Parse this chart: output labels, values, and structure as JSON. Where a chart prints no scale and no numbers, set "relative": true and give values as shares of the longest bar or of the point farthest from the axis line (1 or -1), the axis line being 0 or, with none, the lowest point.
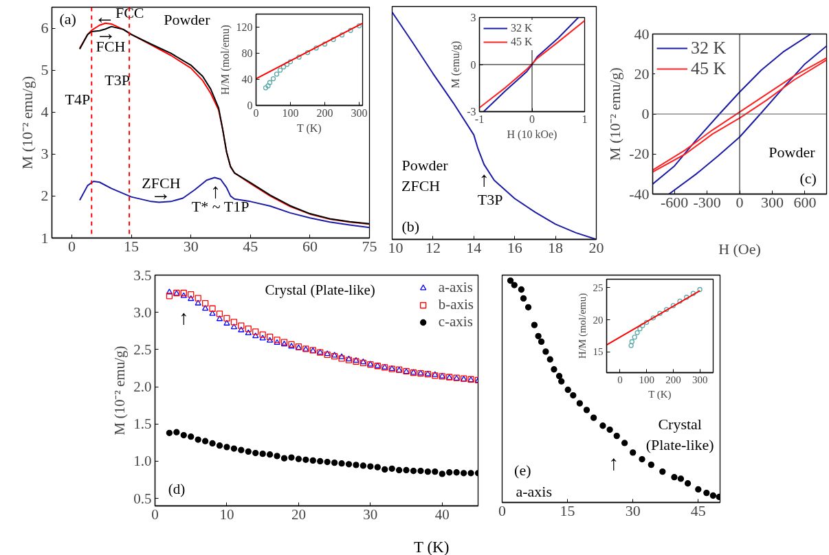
{
  "chart_data": [
    {
      "type": "line",
      "ylabel": "M (10⁻² emu/g)",
      "xlim": [
        -5,
        75
      ],
      "ylim": [
        1,
        6.5
      ],
      "xticks": [
        0,
        15,
        30,
        45,
        60,
        75
      ],
      "yticks": [
        1,
        2,
        3,
        4,
        5,
        6
      ],
      "x": [
        2,
        4,
        5,
        7,
        8.5,
        10,
        13,
        15,
        20,
        25,
        30,
        33,
        35,
        37,
        38,
        39,
        40,
        41,
        45,
        50,
        55,
        60,
        65,
        70,
        75
      ],
      "series": [
        {
          "color": "#ff0000",
          "values": [
            5.52,
            5.85,
            5.95,
            6.07,
            6.12,
            6.1,
            5.97,
            5.85,
            5.6,
            5.35,
            5.05,
            4.75,
            4.45,
            4.05,
            3.6,
            3.05,
            2.7,
            2.55,
            2.3,
            2.0,
            1.75,
            1.57,
            1.45,
            1.38,
            1.33
          ]
        },
        {
          "color": "#000000",
          "values": [
            5.5,
            5.85,
            5.92,
            5.94,
            5.98,
            6.04,
            5.97,
            5.85,
            5.62,
            5.4,
            5.12,
            4.85,
            4.55,
            4.1,
            3.6,
            3.05,
            2.7,
            2.55,
            2.32,
            2.02,
            1.77,
            1.58,
            1.46,
            1.39,
            1.34
          ]
        },
        {
          "color": "#1a1aa6",
          "x": [
            2,
            4,
            5.5,
            7,
            10,
            15,
            20,
            22,
            25,
            28,
            31,
            34,
            36,
            37.5,
            39,
            40,
            41,
            45,
            50,
            55,
            60,
            65,
            70,
            75
          ],
          "values": [
            1.9,
            2.25,
            2.35,
            2.33,
            2.18,
            1.98,
            1.87,
            1.85,
            1.87,
            1.95,
            2.15,
            2.38,
            2.44,
            2.4,
            2.2,
            2.0,
            1.93,
            1.87,
            1.76,
            1.6,
            1.48,
            1.38,
            1.31,
            1.25
          ]
        }
      ],
      "ref_lines": [
        {
          "axis": "x",
          "value": 5,
          "color": "#ff0000",
          "line_style": "dashed"
        },
        {
          "axis": "x",
          "value": 14.5,
          "color": "#ff0000",
          "line_style": "dashed"
        }
      ],
      "annotations": [
        "(a)",
        "Powder",
        "FCC",
        "←",
        "FCH",
        "→",
        "T3P",
        "T4P",
        "ZFCH",
        "→",
        "↑",
        "T* ~ T1P"
      ]
    },
    {
      "type": "scatter",
      "xlabel": "T (K)",
      "ylabel": "H/M (mol/emu)",
      "xlim": [
        0,
        310
      ],
      "ylim": [
        0,
        140
      ],
      "xticks": [
        0,
        100,
        200,
        300
      ],
      "yticks": [
        0,
        40,
        80,
        120
      ],
      "series": [
        {
          "color": "#5aa9a9",
          "marker": "circle",
          "x": [
            28,
            35,
            40,
            50,
            60,
            70,
            80,
            90,
            100,
            125,
            150,
            175,
            200,
            225,
            250,
            275,
            300
          ],
          "values": [
            27,
            30,
            35,
            41,
            48,
            54,
            59,
            63,
            67,
            74,
            81,
            88,
            94,
            101,
            108,
            115,
            122
          ]
        },
        {
          "type": "line",
          "color": "#ff0000",
          "x": [
            0,
            310
          ],
          "values": [
            41,
            126
          ]
        }
      ]
    },
    {
      "type": "line",
      "relative": true,
      "tick_labels": "x",
      "xlim": [
        10,
        20
      ],
      "xticks": [
        10,
        12,
        14,
        16,
        18,
        20
      ],
      "x": [
        10,
        11,
        12,
        13,
        14,
        14.2,
        14.5,
        15,
        16,
        17,
        18,
        19,
        20
      ],
      "series": [
        {
          "color": "#1a1aa6",
          "values": [
            1.0,
            0.867,
            0.73,
            0.6,
            0.46,
            0.4,
            0.33,
            0.26,
            0.18,
            0.12,
            0.067,
            0.029,
            0
          ]
        }
      ],
      "annotations": [
        "(b)",
        "Powder",
        "ZFCH",
        "↑",
        "T3P"
      ]
    },
    {
      "type": "line",
      "xlabel": "H (10 kOe)",
      "ylabel": "M (emu/g)",
      "xlim": [
        -1,
        1
      ],
      "ylim": [
        -3,
        3
      ],
      "xticks": [
        -1,
        0,
        1
      ],
      "yticks": [
        -3,
        0,
        3
      ],
      "legend": "top left",
      "series": [
        {
          "name": "32 K",
          "color": "#1a1aa6",
          "x": [
            -0.92,
            -0.5,
            -0.1,
            0,
            0.1,
            0.5,
            0.88
          ],
          "values": [
            -3,
            -1.65,
            -0.45,
            0,
            0.5,
            1.7,
            3
          ]
        },
        {
          "name": "45 K",
          "color": "#ff2020",
          "x": [
            -1,
            -0.5,
            -0.1,
            0,
            0.1,
            0.5,
            1
          ],
          "values": [
            -2.75,
            -1.45,
            -0.3,
            0.05,
            0.4,
            1.45,
            2.8
          ]
        }
      ],
      "ref_lines": [
        {
          "axis": "x",
          "value": 0,
          "color": "#000000"
        },
        {
          "axis": "y",
          "value": 0,
          "color": "#000000"
        }
      ]
    },
    {
      "type": "line",
      "xlabel": "H (Oe)",
      "ylabel": "M (10⁻² emu/g)",
      "xlim": [
        -800,
        800
      ],
      "ylim": [
        -40,
        40
      ],
      "xticks": [
        -600,
        -300,
        0,
        300,
        600
      ],
      "yticks": [
        -40,
        -20,
        0,
        20,
        40
      ],
      "legend": "top left",
      "series": [
        {
          "name": "32 K",
          "color": "#1a1aa6",
          "x": [
            -800,
            -600,
            -400,
            -186,
            0,
            200,
            400,
            655
          ],
          "values": [
            -35,
            -26,
            -13,
            0,
            11,
            22,
            31,
            40
          ]
        },
        {
          "color": "#1a1aa6",
          "x": [
            -650,
            -400,
            -200,
            0,
            190,
            400,
            600,
            800
          ],
          "values": [
            -40,
            -30,
            -21,
            -11.5,
            0,
            13,
            25,
            34
          ]
        },
        {
          "name": "45 K",
          "color": "#ff2020",
          "x": [
            -800,
            -500,
            -250,
            0,
            250,
            500,
            800
          ],
          "values": [
            -28,
            -18,
            -8,
            1,
            10,
            19,
            28
          ]
        },
        {
          "color": "#ff2020",
          "x": [
            -800,
            -500,
            -250,
            0,
            250,
            500,
            800
          ],
          "values": [
            -29,
            -20,
            -10,
            -2,
            7,
            17,
            27
          ]
        }
      ],
      "ref_lines": [
        {
          "axis": "x",
          "value": 0,
          "color": "#000000"
        },
        {
          "axis": "y",
          "value": 0,
          "color": "#555555"
        }
      ],
      "annotations": [
        "Powder",
        "(c)"
      ]
    },
    {
      "type": "scatter",
      "xlabel": "T (K)",
      "ylabel": "M (10⁻² emu/g)",
      "xlim": [
        0,
        45
      ],
      "ylim": [
        0.4,
        3.5
      ],
      "xticks": [
        0,
        10,
        20,
        30,
        40
      ],
      "yticks": [
        0.5,
        {
          "value": 1,
          "label": "1.0"
        },
        1.5,
        {
          "value": 2,
          "label": "2.0"
        },
        2.5,
        {
          "value": 3,
          "label": "3.0"
        },
        3.5
      ],
      "legend": "top right",
      "x": [
        2,
        3,
        4,
        5,
        6,
        7,
        8,
        9,
        10,
        11,
        12,
        13,
        14,
        15,
        16,
        17,
        18,
        19,
        20,
        21,
        22,
        23,
        24,
        25,
        26,
        27,
        28,
        29,
        30,
        31,
        32,
        33,
        34,
        35,
        36,
        37,
        38,
        39,
        40,
        41,
        42,
        43,
        44,
        45
      ],
      "series": [
        {
          "name": "a-axis",
          "color": "#0000ff",
          "marker": "triangle",
          "values": [
            3.27,
            3.25,
            3.22,
            3.18,
            3.12,
            3.05,
            2.98,
            2.91,
            2.85,
            2.8,
            2.76,
            2.72,
            2.68,
            2.65,
            2.62,
            2.59,
            2.57,
            2.54,
            2.52,
            2.5,
            2.48,
            2.46,
            2.44,
            2.42,
            2.4,
            2.37,
            2.35,
            2.33,
            2.3,
            2.28,
            2.26,
            2.24,
            2.22,
            2.2,
            2.19,
            2.18,
            2.17,
            2.16,
            2.14,
            2.12,
            2.11,
            2.1,
            2.09,
            2.08
          ]
        },
        {
          "name": "b-axis",
          "color": "#ff0000",
          "marker": "square",
          "values": [
            3.22,
            3.26,
            3.26,
            3.24,
            3.19,
            3.12,
            3.05,
            2.98,
            2.92,
            2.87,
            2.82,
            2.78,
            2.74,
            2.7,
            2.67,
            2.63,
            2.6,
            2.57,
            2.54,
            2.51,
            2.49,
            2.46,
            2.43,
            2.41,
            2.38,
            2.36,
            2.34,
            2.32,
            2.3,
            2.28,
            2.26,
            2.24,
            2.23,
            2.21,
            2.19,
            2.18,
            2.17,
            2.15,
            2.14,
            2.13,
            2.12,
            2.11,
            2.1,
            2.09
          ]
        },
        {
          "name": "c-axis",
          "color": "#000000",
          "marker": "circle",
          "values": [
            1.38,
            1.39,
            1.35,
            1.33,
            1.29,
            1.27,
            1.24,
            1.21,
            1.19,
            1.17,
            1.15,
            1.13,
            1.11,
            1.1,
            1.09,
            1.07,
            1.04,
            1.05,
            1.03,
            1.02,
            1.01,
            1.0,
            0.99,
            0.98,
            0.97,
            0.96,
            0.95,
            0.94,
            0.93,
            0.92,
            0.89,
            0.9,
            0.88,
            0.88,
            0.87,
            0.87,
            0.86,
            0.86,
            0.83,
            0.85,
            0.85,
            0.84,
            0.84,
            0.84
          ]
        }
      ],
      "annotations": [
        "Crystal (Plate-like)",
        "(d)",
        "↑"
      ]
    },
    {
      "type": "scatter",
      "relative": true,
      "tick_labels": "x",
      "xlim": [
        0,
        50
      ],
      "xticks": [
        0,
        15,
        30,
        45
      ],
      "marker": "circle",
      "series": [
        {
          "color": "#000000",
          "x": [
            1.9,
            2.8,
            4.4,
            4.9,
            6.0,
            7.4,
            8.3,
            9.0,
            10.0,
            11.0,
            11.9,
            13.1,
            13.6,
            15.1,
            16.3,
            17.8,
            19.4,
            21.0,
            23.1,
            24.7,
            26.3,
            28.1,
            30.0,
            32.1,
            34.2,
            36.8,
            39.5,
            41.0,
            42.6,
            45.0,
            46.9,
            48.4,
            49.8
          ],
          "values": [
            1.0,
            0.98,
            0.96,
            0.92,
            0.88,
            0.8,
            0.75,
            0.725,
            0.68,
            0.645,
            0.6,
            0.57,
            0.546,
            0.508,
            0.483,
            0.447,
            0.417,
            0.382,
            0.346,
            0.328,
            0.3,
            0.268,
            0.225,
            0.195,
            0.17,
            0.139,
            0.114,
            0.107,
            0.086,
            0.059,
            0.043,
            0.031,
            0.025
          ]
        }
      ],
      "annotations": [
        "Crystal\n(Plate-like)",
        "(e)",
        "a-axis",
        "↑"
      ]
    },
    {
      "type": "scatter",
      "xlabel": "T (K)",
      "ylabel": "H/M (mol/emu)",
      "xlim": [
        -50,
        350
      ],
      "ylim": [
        11.8,
        26.3
      ],
      "xticks": [
        0,
        100,
        200,
        300
      ],
      "yticks": [
        15,
        20,
        25
      ],
      "series": [
        {
          "color": "#5aa9a9",
          "marker": "circle",
          "x": [
            42,
            45,
            55,
            65,
            75,
            85,
            100,
            125,
            150,
            175,
            200,
            225,
            250,
            275,
            300
          ],
          "values": [
            16,
            16.6,
            17.3,
            18.0,
            18.6,
            19.1,
            19.6,
            20.3,
            21.0,
            21.6,
            22.2,
            22.9,
            23.5,
            24.1,
            24.7
          ]
        },
        {
          "type": "line",
          "color": "#ff0000",
          "x": [
            -50,
            300
          ],
          "values": [
            16.1,
            24.5
          ]
        }
      ]
    }
  ]
}
